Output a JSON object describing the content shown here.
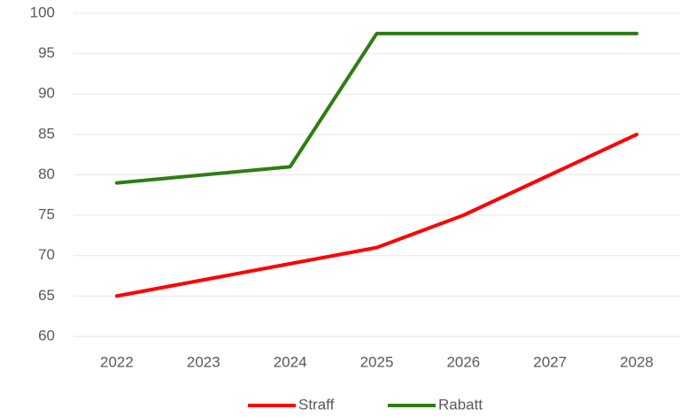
{
  "chart_data": {
    "type": "line",
    "categories": [
      "2022",
      "2023",
      "2024",
      "2025",
      "2026",
      "2027",
      "2028"
    ],
    "series": [
      {
        "name": "Straff",
        "color": "#ff0000",
        "values": [
          65,
          67,
          69,
          71,
          75,
          80,
          85
        ]
      },
      {
        "name": "Rabatt",
        "color": "#2e7d14",
        "values": [
          79,
          80,
          81,
          97.5,
          97.5,
          97.5,
          97.5
        ]
      }
    ],
    "ylim": [
      60,
      100
    ],
    "yticks": [
      60,
      65,
      70,
      75,
      80,
      85,
      90,
      95,
      100
    ],
    "grid": true,
    "legend": "bottom"
  }
}
